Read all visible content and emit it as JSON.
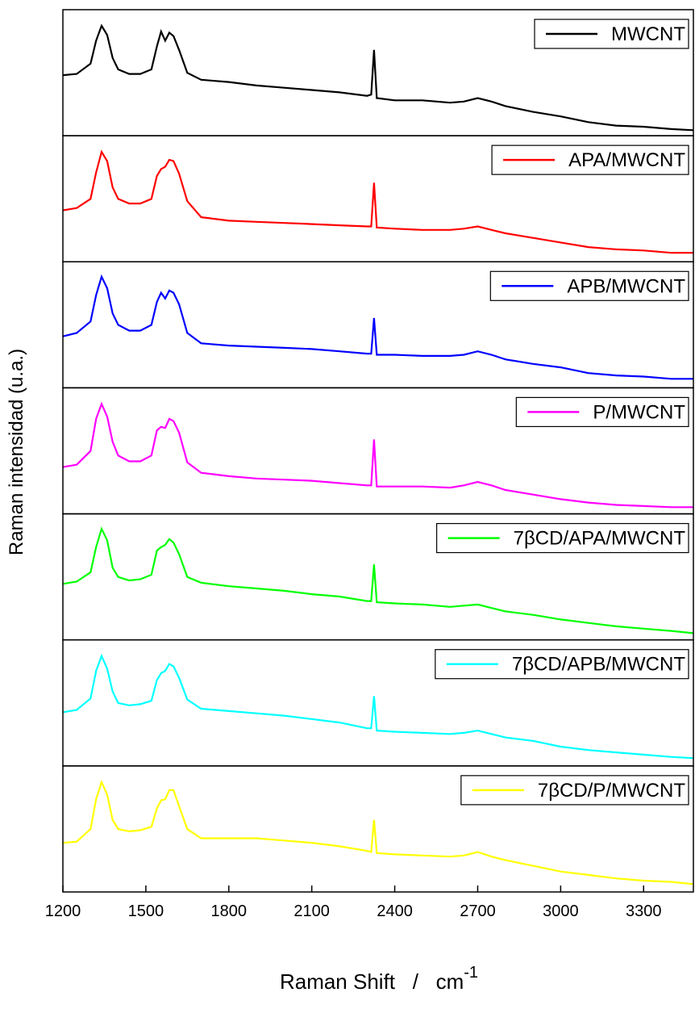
{
  "chart_data": {
    "type": "line",
    "xlabel": "Raman Shift   /   cm",
    "xlabel_superscript": "-1",
    "ylabel": "Raman intensidad (u.a.)",
    "xlim": [
      1200,
      3480
    ],
    "xticks": [
      1200,
      1500,
      1800,
      2100,
      2400,
      2700,
      3000,
      3300
    ],
    "ylim": [
      0,
      100
    ],
    "stacked_panels": true,
    "legend": "upper right",
    "x": [
      1200,
      1250,
      1300,
      1320,
      1340,
      1360,
      1380,
      1400,
      1440,
      1480,
      1520,
      1540,
      1555,
      1570,
      1585,
      1600,
      1620,
      1650,
      1700,
      1800,
      1900,
      2000,
      2100,
      2200,
      2300,
      2315,
      2325,
      2335,
      2400,
      2500,
      2600,
      2650,
      2700,
      2750,
      2800,
      2900,
      3000,
      3100,
      3200,
      3300,
      3400,
      3480
    ],
    "series": [
      {
        "name": "MWCNT",
        "color": "#000000",
        "values": [
          50,
          51,
          60,
          80,
          93,
          85,
          65,
          55,
          51,
          51,
          55,
          75,
          88,
          80,
          87,
          84,
          72,
          52,
          46,
          44,
          41,
          39,
          37,
          35,
          32,
          33,
          72,
          30,
          28,
          28,
          26,
          27,
          30,
          27,
          23,
          18,
          14,
          9,
          6,
          5,
          3,
          2
        ]
      },
      {
        "name": "APA/MWCNT",
        "color": "#ff0000",
        "values": [
          42,
          44,
          52,
          75,
          93,
          85,
          62,
          52,
          48,
          48,
          52,
          72,
          78,
          80,
          86,
          85,
          74,
          50,
          36,
          33,
          32,
          31,
          30,
          29,
          28,
          28,
          66,
          27,
          26,
          25,
          25,
          26,
          28,
          25,
          22,
          18,
          14,
          10,
          8,
          7,
          5,
          5
        ]
      },
      {
        "name": "APB/MWCNT",
        "color": "#0000ff",
        "values": [
          42,
          45,
          55,
          78,
          94,
          84,
          62,
          52,
          47,
          47,
          52,
          72,
          80,
          75,
          82,
          80,
          70,
          45,
          36,
          34,
          33,
          32,
          31,
          29,
          27,
          27,
          58,
          26,
          26,
          25,
          25,
          26,
          29,
          26,
          22,
          18,
          15,
          10,
          8,
          7,
          5,
          5
        ]
      },
      {
        "name": "P/MWCNT",
        "color": "#ff00ff",
        "values": [
          38,
          40,
          52,
          80,
          93,
          82,
          60,
          48,
          43,
          43,
          48,
          70,
          73,
          72,
          80,
          78,
          68,
          42,
          33,
          30,
          28,
          27,
          26,
          24,
          22,
          22,
          62,
          21,
          21,
          21,
          20,
          22,
          25,
          22,
          18,
          14,
          10,
          7,
          5,
          4,
          3,
          3
        ]
      },
      {
        "name": "7βCD/APA/MWCNT",
        "color": "#00ff00",
        "values": [
          46,
          48,
          56,
          78,
          94,
          84,
          60,
          52,
          49,
          50,
          54,
          75,
          78,
          80,
          85,
          82,
          72,
          52,
          47,
          44,
          42,
          40,
          37,
          35,
          31,
          31,
          63,
          30,
          29,
          28,
          26,
          27,
          28,
          25,
          22,
          19,
          15,
          12,
          9,
          7,
          5,
          3
        ]
      },
      {
        "name": "7βCD/APB/MWCNT",
        "color": "#00ffff",
        "values": [
          44,
          46,
          56,
          80,
          93,
          82,
          62,
          52,
          50,
          51,
          54,
          72,
          78,
          80,
          86,
          84,
          74,
          55,
          47,
          45,
          43,
          41,
          38,
          35,
          30,
          30,
          58,
          28,
          27,
          26,
          25,
          26,
          28,
          25,
          22,
          19,
          14,
          11,
          9,
          7,
          5,
          4
        ]
      },
      {
        "name": "7βCD/P/MWCNT",
        "color": "#ffff00",
        "values": [
          40,
          41,
          52,
          78,
          93,
          82,
          60,
          52,
          50,
          51,
          54,
          70,
          77,
          78,
          86,
          86,
          72,
          52,
          44,
          44,
          44,
          42,
          40,
          37,
          33,
          32,
          60,
          31,
          30,
          29,
          28,
          29,
          32,
          28,
          25,
          20,
          15,
          12,
          9,
          7,
          6,
          4
        ]
      }
    ]
  }
}
